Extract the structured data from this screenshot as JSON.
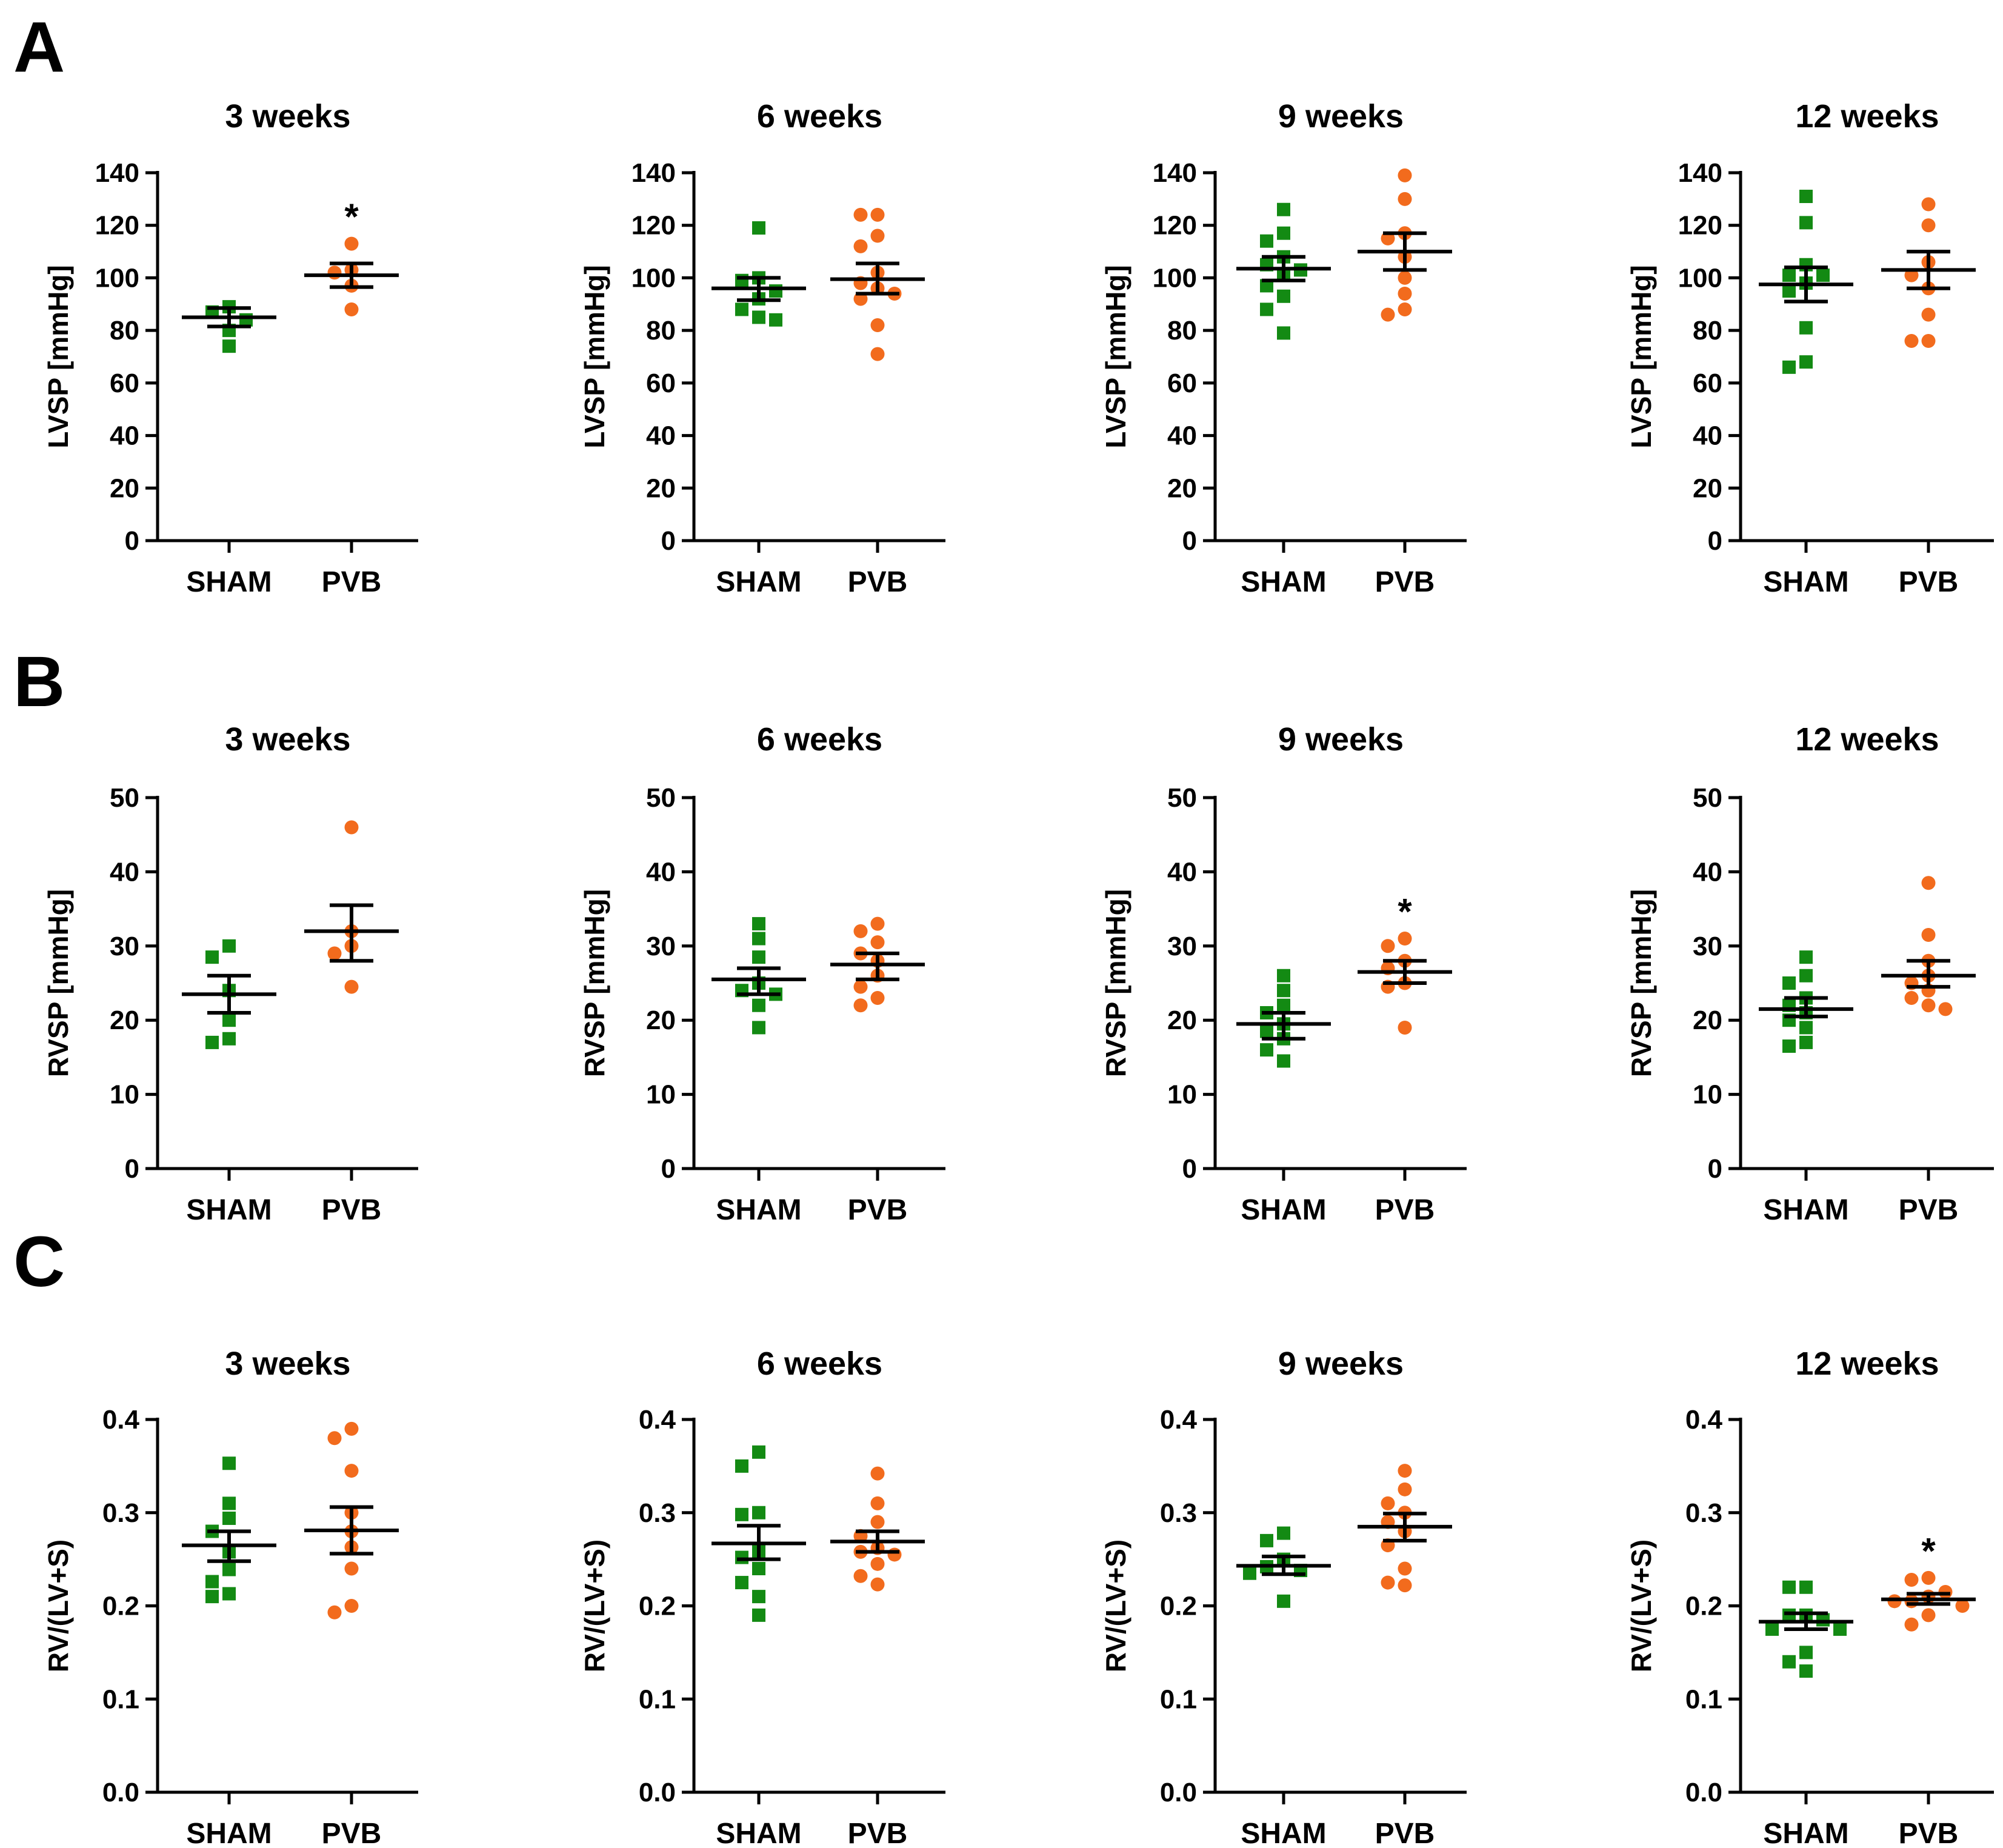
{
  "panel_letters": [
    "A",
    "B",
    "C"
  ],
  "colors": {
    "sham": "#138a13",
    "pvb": "#f26b1d",
    "axis": "#000000"
  },
  "chart_data": [
    {
      "panel": "A",
      "type": "scatter",
      "title": "3 weeks",
      "ylabel": "LVSP [mmHg]",
      "ylim": [
        0,
        140
      ],
      "yticks": [
        "0",
        "20",
        "40",
        "60",
        "80",
        "100",
        "120",
        "140"
      ],
      "categories": [
        "SHAM",
        "PVB"
      ],
      "series": [
        {
          "name": "SHAM",
          "marker": "square",
          "values": [
            89,
            87,
            84,
            80,
            74
          ],
          "mean": 85,
          "sem_low": 81.5,
          "sem_high": 88.5
        },
        {
          "name": "PVB",
          "marker": "circle",
          "values": [
            113,
            103,
            102,
            97,
            88
          ],
          "mean": 101,
          "sem_low": 96.5,
          "sem_high": 105.5,
          "significance": "*"
        }
      ]
    },
    {
      "panel": "A",
      "type": "scatter",
      "title": "6 weeks",
      "ylabel": "LVSP [mmHg]",
      "ylim": [
        0,
        140
      ],
      "yticks": [
        "0",
        "20",
        "40",
        "60",
        "80",
        "100",
        "120",
        "140"
      ],
      "categories": [
        "SHAM",
        "PVB"
      ],
      "series": [
        {
          "name": "SHAM",
          "marker": "square",
          "values": [
            119,
            100,
            99,
            95,
            92,
            88,
            85,
            84
          ],
          "mean": 96,
          "sem_low": 91.5,
          "sem_high": 100
        },
        {
          "name": "PVB",
          "marker": "circle",
          "values": [
            124,
            124,
            116,
            112,
            102,
            98,
            96,
            94,
            92,
            82,
            71
          ],
          "mean": 99.5,
          "sem_low": 94,
          "sem_high": 105.5
        }
      ]
    },
    {
      "panel": "A",
      "type": "scatter",
      "title": "9 weeks",
      "ylabel": "LVSP [mmHg]",
      "ylim": [
        0,
        140
      ],
      "yticks": [
        "0",
        "20",
        "40",
        "60",
        "80",
        "100",
        "120",
        "140"
      ],
      "categories": [
        "SHAM",
        "PVB"
      ],
      "series": [
        {
          "name": "SHAM",
          "marker": "square",
          "values": [
            126,
            117,
            114,
            108,
            105,
            103,
            101,
            97,
            93,
            88,
            79
          ],
          "mean": 103.5,
          "sem_low": 99,
          "sem_high": 108
        },
        {
          "name": "PVB",
          "marker": "circle",
          "values": [
            139,
            130,
            117,
            115,
            108,
            100,
            94,
            88,
            86
          ],
          "mean": 110,
          "sem_low": 103,
          "sem_high": 117
        }
      ]
    },
    {
      "panel": "A",
      "type": "scatter",
      "title": "12 weeks",
      "ylabel": "LVSP [mmHg]",
      "ylim": [
        0,
        140
      ],
      "yticks": [
        "0",
        "20",
        "40",
        "60",
        "80",
        "100",
        "120",
        "140"
      ],
      "categories": [
        "SHAM",
        "PVB"
      ],
      "series": [
        {
          "name": "SHAM",
          "marker": "square",
          "values": [
            131,
            121,
            105,
            101,
            101,
            98,
            95,
            81,
            68,
            66
          ],
          "mean": 97.5,
          "sem_low": 91,
          "sem_high": 104
        },
        {
          "name": "PVB",
          "marker": "circle",
          "values": [
            128,
            120,
            106,
            101,
            96,
            86,
            76,
            76
          ],
          "mean": 103,
          "sem_low": 96,
          "sem_high": 110
        }
      ]
    },
    {
      "panel": "B",
      "type": "scatter",
      "title": "3 weeks",
      "ylabel": "RVSP [mmHg]",
      "ylim": [
        0,
        50
      ],
      "yticks": [
        "0",
        "10",
        "20",
        "30",
        "40",
        "50"
      ],
      "categories": [
        "SHAM",
        "PVB"
      ],
      "series": [
        {
          "name": "SHAM",
          "marker": "square",
          "values": [
            30,
            28.5,
            24,
            20,
            17.5,
            17
          ],
          "mean": 23.5,
          "sem_low": 21,
          "sem_high": 26
        },
        {
          "name": "PVB",
          "marker": "circle",
          "values": [
            46,
            32,
            30,
            29,
            24.5
          ],
          "mean": 32,
          "sem_low": 28,
          "sem_high": 35.5
        }
      ]
    },
    {
      "panel": "B",
      "type": "scatter",
      "title": "6 weeks",
      "ylabel": "RVSP [mmHg]",
      "ylim": [
        0,
        50
      ],
      "yticks": [
        "0",
        "10",
        "20",
        "30",
        "40",
        "50"
      ],
      "categories": [
        "SHAM",
        "PVB"
      ],
      "series": [
        {
          "name": "SHAM",
          "marker": "square",
          "values": [
            33,
            31,
            28.5,
            25,
            24,
            23.5,
            22,
            19
          ],
          "mean": 25.5,
          "sem_low": 23.5,
          "sem_high": 27
        },
        {
          "name": "PVB",
          "marker": "circle",
          "values": [
            33,
            32,
            30.5,
            29,
            28,
            26,
            24.5,
            23,
            22
          ],
          "mean": 27.5,
          "sem_low": 25.5,
          "sem_high": 29
        }
      ]
    },
    {
      "panel": "B",
      "type": "scatter",
      "title": "9 weeks",
      "ylabel": "RVSP [mmHg]",
      "ylim": [
        0,
        50
      ],
      "yticks": [
        "0",
        "10",
        "20",
        "30",
        "40",
        "50"
      ],
      "categories": [
        "SHAM",
        "PVB"
      ],
      "series": [
        {
          "name": "SHAM",
          "marker": "square",
          "values": [
            26,
            24,
            22,
            21,
            19.5,
            18.5,
            17.5,
            16,
            14.5
          ],
          "mean": 19.5,
          "sem_low": 17.5,
          "sem_high": 21
        },
        {
          "name": "PVB",
          "marker": "circle",
          "values": [
            31,
            30,
            28,
            27,
            25,
            24.5,
            19
          ],
          "mean": 26.5,
          "sem_low": 25,
          "sem_high": 28,
          "significance": "*"
        }
      ]
    },
    {
      "panel": "B",
      "type": "scatter",
      "title": "12 weeks",
      "ylabel": "RVSP [mmHg]",
      "ylim": [
        0,
        50
      ],
      "yticks": [
        "0",
        "10",
        "20",
        "30",
        "40",
        "50"
      ],
      "categories": [
        "SHAM",
        "PVB"
      ],
      "series": [
        {
          "name": "SHAM",
          "marker": "square",
          "values": [
            28.5,
            26,
            25,
            23,
            22,
            21,
            20,
            19,
            17,
            16.5
          ],
          "mean": 21.5,
          "sem_low": 20.5,
          "sem_high": 23
        },
        {
          "name": "PVB",
          "marker": "circle",
          "values": [
            38.5,
            31.5,
            28,
            26,
            25,
            24,
            23,
            22,
            21.5
          ],
          "mean": 26,
          "sem_low": 24.5,
          "sem_high": 28
        }
      ]
    },
    {
      "panel": "C",
      "type": "scatter",
      "title": "3 weeks",
      "ylabel": "RV/(LV+S)",
      "ylim": [
        0,
        0.4
      ],
      "yticks": [
        "0.0",
        "0.1",
        "0.2",
        "0.3",
        "0.4"
      ],
      "categories": [
        "SHAM",
        "PVB"
      ],
      "series": [
        {
          "name": "SHAM",
          "marker": "square",
          "values": [
            0.353,
            0.31,
            0.294,
            0.28,
            0.258,
            0.239,
            0.226,
            0.213,
            0.21
          ],
          "mean": 0.265,
          "sem_low": 0.248,
          "sem_high": 0.28
        },
        {
          "name": "PVB",
          "marker": "circle",
          "values": [
            0.39,
            0.38,
            0.345,
            0.3,
            0.28,
            0.263,
            0.24,
            0.2,
            0.193
          ],
          "mean": 0.281,
          "sem_low": 0.256,
          "sem_high": 0.306
        }
      ]
    },
    {
      "panel": "C",
      "type": "scatter",
      "title": "6 weeks",
      "ylabel": "RV/(LV+S)",
      "ylim": [
        0,
        0.4
      ],
      "yticks": [
        "0.0",
        "0.1",
        "0.2",
        "0.3",
        "0.4"
      ],
      "categories": [
        "SHAM",
        "PVB"
      ],
      "series": [
        {
          "name": "SHAM",
          "marker": "square",
          "values": [
            0.365,
            0.35,
            0.3,
            0.298,
            0.258,
            0.252,
            0.24,
            0.225,
            0.21,
            0.19
          ],
          "mean": 0.267,
          "sem_low": 0.25,
          "sem_high": 0.286
        },
        {
          "name": "PVB",
          "marker": "circle",
          "values": [
            0.342,
            0.31,
            0.29,
            0.275,
            0.262,
            0.258,
            0.255,
            0.245,
            0.232,
            0.223
          ],
          "mean": 0.269,
          "sem_low": 0.258,
          "sem_high": 0.28
        }
      ]
    },
    {
      "panel": "C",
      "type": "scatter",
      "title": "9 weeks",
      "ylabel": "RV/(LV+S)",
      "ylim": [
        0,
        0.4
      ],
      "yticks": [
        "0.0",
        "0.1",
        "0.2",
        "0.3",
        "0.4"
      ],
      "categories": [
        "SHAM",
        "PVB"
      ],
      "series": [
        {
          "name": "SHAM",
          "marker": "square",
          "values": [
            0.278,
            0.27,
            0.25,
            0.242,
            0.238,
            0.235,
            0.205
          ],
          "mean": 0.243,
          "sem_low": 0.234,
          "sem_high": 0.253
        },
        {
          "name": "PVB",
          "marker": "circle",
          "values": [
            0.345,
            0.325,
            0.31,
            0.3,
            0.29,
            0.28,
            0.265,
            0.24,
            0.225,
            0.222
          ],
          "mean": 0.285,
          "sem_low": 0.27,
          "sem_high": 0.299
        }
      ]
    },
    {
      "panel": "C",
      "type": "scatter",
      "title": "12 weeks",
      "ylabel": "RV/(LV+S)",
      "ylim": [
        0,
        0.4
      ],
      "yticks": [
        "0.0",
        "0.1",
        "0.2",
        "0.3",
        "0.4"
      ],
      "categories": [
        "SHAM",
        "PVB"
      ],
      "series": [
        {
          "name": "SHAM",
          "marker": "square",
          "values": [
            0.22,
            0.22,
            0.19,
            0.19,
            0.185,
            0.175,
            0.175,
            0.15,
            0.14,
            0.13
          ],
          "mean": 0.183,
          "sem_low": 0.175,
          "sem_high": 0.192
        },
        {
          "name": "PVB",
          "marker": "circle",
          "values": [
            0.23,
            0.228,
            0.215,
            0.21,
            0.205,
            0.205,
            0.2,
            0.19,
            0.18
          ],
          "mean": 0.207,
          "sem_low": 0.202,
          "sem_high": 0.213,
          "significance": "*"
        }
      ]
    }
  ]
}
